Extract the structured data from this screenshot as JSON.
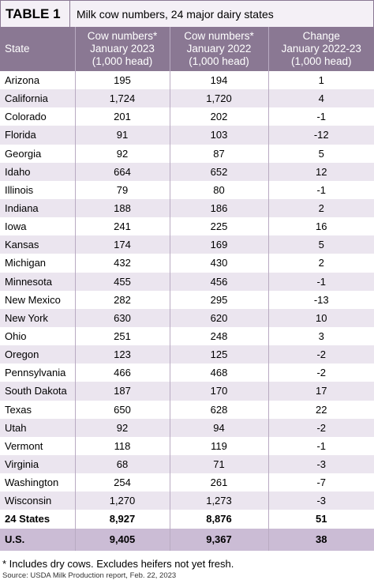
{
  "title": {
    "label": "TABLE 1",
    "text": "Milk cow numbers, 24 major dairy states"
  },
  "table": {
    "headers": [
      [
        "State"
      ],
      [
        "Cow numbers*",
        "January 2023",
        "(1,000 head)"
      ],
      [
        "Cow numbers*",
        "January 2022",
        "(1,000 head)"
      ],
      [
        "Change",
        "January 2022-23",
        "(1,000 head)"
      ]
    ],
    "rows": [
      [
        "Arizona",
        "195",
        "194",
        "1"
      ],
      [
        "California",
        "1,724",
        "1,720",
        "4"
      ],
      [
        "Colorado",
        "201",
        "202",
        "-1"
      ],
      [
        "Florida",
        "91",
        "103",
        "-12"
      ],
      [
        "Georgia",
        "92",
        "87",
        "5"
      ],
      [
        "Idaho",
        "664",
        "652",
        "12"
      ],
      [
        "Illinois",
        "79",
        "80",
        "-1"
      ],
      [
        "Indiana",
        "188",
        "186",
        "2"
      ],
      [
        "Iowa",
        "241",
        "225",
        "16"
      ],
      [
        "Kansas",
        "174",
        "169",
        "5"
      ],
      [
        "Michigan",
        "432",
        "430",
        "2"
      ],
      [
        "Minnesota",
        "455",
        "456",
        "-1"
      ],
      [
        "New Mexico",
        "282",
        "295",
        "-13"
      ],
      [
        "New York",
        "630",
        "620",
        "10"
      ],
      [
        "Ohio",
        "251",
        "248",
        "3"
      ],
      [
        "Oregon",
        "123",
        "125",
        "-2"
      ],
      [
        "Pennsylvania",
        "466",
        "468",
        "-2"
      ],
      [
        "South Dakota",
        "187",
        "170",
        "17"
      ],
      [
        "Texas",
        "650",
        "628",
        "22"
      ],
      [
        "Utah",
        "92",
        "94",
        "-2"
      ],
      [
        "Vermont",
        "118",
        "119",
        "-1"
      ],
      [
        "Virginia",
        "68",
        "71",
        "-3"
      ],
      [
        "Washington",
        "254",
        "261",
        "-7"
      ],
      [
        "Wisconsin",
        "1,270",
        "1,273",
        "-3"
      ]
    ],
    "totals": [
      [
        "24 States",
        "8,927",
        "8,876",
        "51"
      ],
      [
        "U.S.",
        "9,405",
        "9,367",
        "38"
      ]
    ]
  },
  "footnote": "* Includes dry cows. Excludes heifers not yet fresh.",
  "source": "Source: USDA Milk Production report, Feb. 22, 2023"
}
